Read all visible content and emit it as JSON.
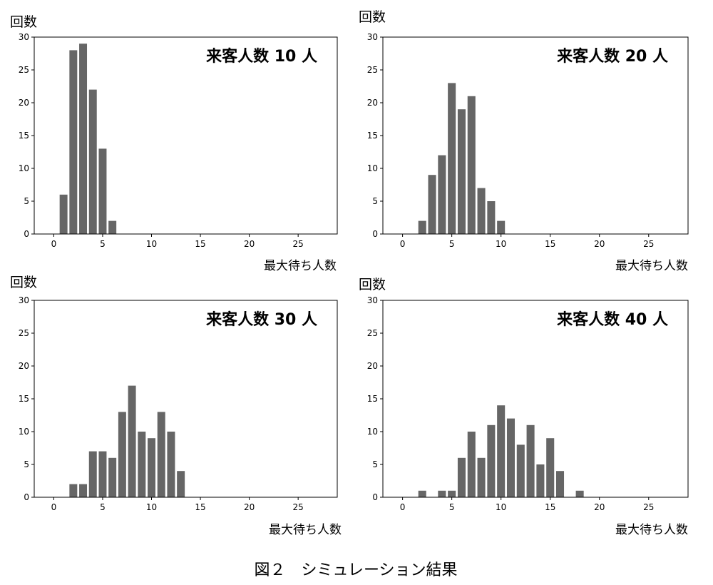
{
  "figure": {
    "caption": "図２　シミュレーション結果"
  },
  "colors": {
    "bar": "#666666",
    "axis": "#000000",
    "background": "#ffffff"
  },
  "chart_data": [
    {
      "type": "bar",
      "annotation": "来客人数 10 人",
      "ylabel": "回数",
      "xlabel": "最大待ち人数",
      "xlim": [
        -2,
        29
      ],
      "ylim": [
        0,
        30
      ],
      "xticks": [
        0,
        5,
        10,
        15,
        20,
        25
      ],
      "yticks": [
        0,
        5,
        10,
        15,
        20,
        25,
        30
      ],
      "x": [
        1,
        2,
        3,
        4,
        5,
        6
      ],
      "values": [
        6,
        28,
        29,
        22,
        13,
        2
      ]
    },
    {
      "type": "bar",
      "annotation": "来客人数 20 人",
      "ylabel": "回数",
      "xlabel": "最大待ち人数",
      "xlim": [
        -2,
        29
      ],
      "ylim": [
        0,
        30
      ],
      "xticks": [
        0,
        5,
        10,
        15,
        20,
        25
      ],
      "yticks": [
        0,
        5,
        10,
        15,
        20,
        25,
        30
      ],
      "x": [
        2,
        3,
        4,
        5,
        6,
        7,
        8,
        9,
        10
      ],
      "values": [
        2,
        9,
        12,
        23,
        19,
        21,
        7,
        5,
        2
      ]
    },
    {
      "type": "bar",
      "annotation": "来客人数 30 人",
      "ylabel": "回数",
      "xlabel": "最大待ち人数",
      "xlim": [
        -2,
        29
      ],
      "ylim": [
        0,
        30
      ],
      "xticks": [
        0,
        5,
        10,
        15,
        20,
        25
      ],
      "yticks": [
        0,
        5,
        10,
        15,
        20,
        25,
        30
      ],
      "x": [
        2,
        3,
        4,
        5,
        6,
        7,
        8,
        9,
        10,
        11,
        12,
        13
      ],
      "values": [
        2,
        2,
        7,
        7,
        6,
        13,
        17,
        10,
        9,
        13,
        10,
        4
      ]
    },
    {
      "type": "bar",
      "annotation": "来客人数 40 人",
      "ylabel": "回数",
      "xlabel": "最大待ち人数",
      "xlim": [
        -2,
        29
      ],
      "ylim": [
        0,
        30
      ],
      "xticks": [
        0,
        5,
        10,
        15,
        20,
        25
      ],
      "yticks": [
        0,
        5,
        10,
        15,
        20,
        25,
        30
      ],
      "x": [
        2,
        4,
        5,
        6,
        7,
        8,
        9,
        10,
        11,
        12,
        13,
        14,
        15,
        16,
        18
      ],
      "values": [
        1,
        1,
        1,
        6,
        10,
        6,
        11,
        14,
        12,
        8,
        11,
        5,
        9,
        4,
        1
      ]
    }
  ]
}
